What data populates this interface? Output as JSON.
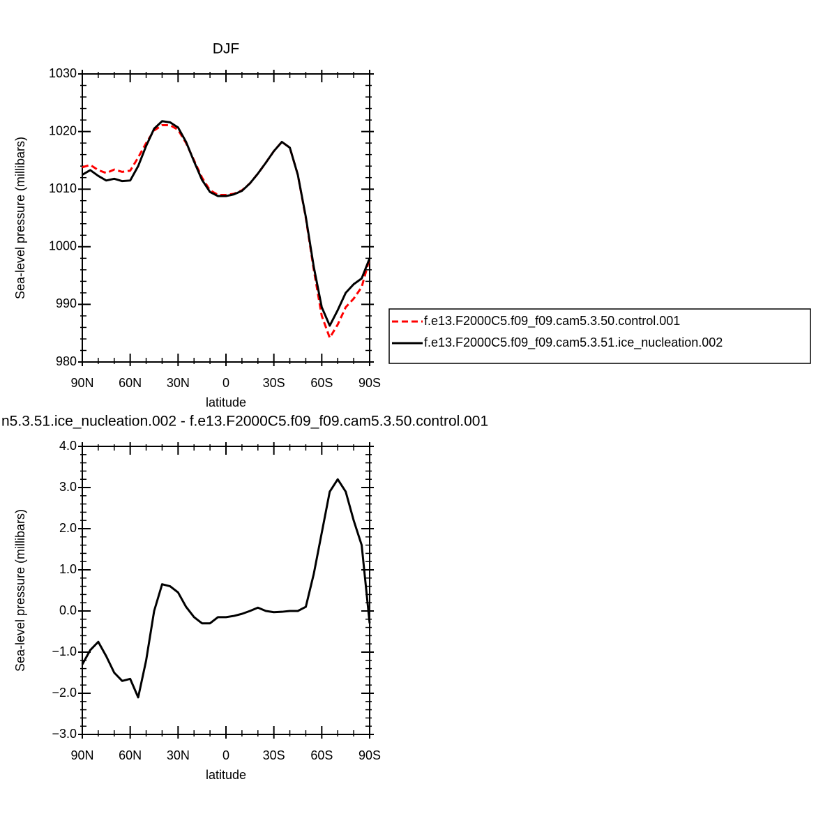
{
  "chart_data": [
    {
      "type": "line",
      "title": "DJF",
      "xlabel": "latitude",
      "ylabel": "Sea-level pressure (millibars)",
      "x": [
        90,
        85,
        80,
        75,
        70,
        65,
        60,
        55,
        50,
        45,
        40,
        35,
        30,
        25,
        20,
        15,
        10,
        5,
        0,
        -5,
        -10,
        -15,
        -20,
        -25,
        -30,
        -35,
        -40,
        -45,
        -50,
        -55,
        -60,
        -65,
        -70,
        -75,
        -80,
        -85,
        -90
      ],
      "series": [
        {
          "name": "f.e13.F2000C5.f09_f09.cam5.3.50.control.001",
          "color": "#ff0000",
          "dash": true,
          "values": [
            1013.8,
            1014.2,
            1013.3,
            1012.8,
            1013.4,
            1013.0,
            1013.2,
            1015.5,
            1018.0,
            1020.2,
            1021.1,
            1021.1,
            1020.3,
            1018.0,
            1015.0,
            1012.0,
            1009.8,
            1009.0,
            1009.0,
            1009.2,
            1009.8,
            1011.0,
            1012.7,
            1014.6,
            1016.6,
            1018.2,
            1017.2,
            1012.5,
            1005.0,
            996.0,
            988.0,
            984.2,
            986.5,
            989.5,
            991.0,
            993.0,
            998.0
          ]
        },
        {
          "name": "f.e13.F2000C5.f09_f09.cam5.3.51.ice_nucleation.002",
          "color": "#000000",
          "dash": false,
          "values": [
            1012.5,
            1013.3,
            1012.3,
            1011.5,
            1011.8,
            1011.4,
            1011.5,
            1014.0,
            1017.5,
            1020.5,
            1021.8,
            1021.6,
            1020.7,
            1018.2,
            1014.8,
            1011.6,
            1009.5,
            1008.8,
            1008.8,
            1009.1,
            1009.7,
            1011.0,
            1012.7,
            1014.6,
            1016.6,
            1018.2,
            1017.2,
            1012.5,
            1005.2,
            996.5,
            989.5,
            986.3,
            989.0,
            992.0,
            993.5,
            994.5,
            998.0
          ]
        }
      ],
      "xlim": [
        90,
        -90
      ],
      "xticks": [
        {
          "value": 90,
          "label": "90N"
        },
        {
          "value": 60,
          "label": "60N"
        },
        {
          "value": 30,
          "label": "30N"
        },
        0,
        {
          "value": -30,
          "label": "30S"
        },
        {
          "value": -60,
          "label": "60S"
        },
        {
          "value": -90,
          "label": "90S"
        }
      ],
      "ylim": [
        980,
        1030
      ],
      "yticks": [
        980,
        990,
        1000,
        1010,
        1020,
        1030
      ],
      "legend": "outside-right"
    },
    {
      "type": "line",
      "title": "n5.3.51.ice_nucleation.002 - f.e13.F2000C5.f09_f09.cam5.3.50.control.001",
      "xlabel": "latitude",
      "ylabel": "Sea-level pressure (millibars)",
      "x": [
        90,
        85,
        80,
        75,
        70,
        65,
        60,
        55,
        50,
        45,
        40,
        35,
        30,
        25,
        20,
        15,
        10,
        5,
        0,
        -5,
        -10,
        -15,
        -20,
        -25,
        -30,
        -35,
        -40,
        -45,
        -50,
        -55,
        -60,
        -65,
        -70,
        -75,
        -80,
        -85,
        -90
      ],
      "series": [
        {
          "color": "#000000",
          "dash": false,
          "values": [
            -1.3,
            -0.95,
            -0.75,
            -1.1,
            -1.5,
            -1.7,
            -1.65,
            -2.1,
            -1.2,
            0.0,
            0.65,
            0.6,
            0.45,
            0.1,
            -0.15,
            -0.3,
            -0.3,
            -0.15,
            -0.15,
            -0.12,
            -0.07,
            0.0,
            0.08,
            0.0,
            -0.03,
            -0.02,
            0.0,
            0.0,
            0.1,
            0.9,
            1.9,
            2.9,
            3.2,
            2.9,
            2.2,
            1.6,
            -0.3
          ]
        }
      ],
      "xlim": [
        90,
        -90
      ],
      "xticks": [
        {
          "value": 90,
          "label": "90N"
        },
        {
          "value": 60,
          "label": "60N"
        },
        {
          "value": 30,
          "label": "30N"
        },
        0,
        {
          "value": -30,
          "label": "30S"
        },
        {
          "value": -60,
          "label": "60S"
        },
        {
          "value": -90,
          "label": "90S"
        }
      ],
      "ylim": [
        -3,
        4
      ],
      "yticks": [
        {
          "value": -3,
          "label": "−3.0"
        },
        {
          "value": -2,
          "label": "−2.0"
        },
        {
          "value": -1,
          "label": "−1.0"
        },
        {
          "value": 0,
          "label": "0.0"
        },
        {
          "value": 1,
          "label": "1.0"
        },
        {
          "value": 2,
          "label": "2.0"
        },
        {
          "value": 3,
          "label": "3.0"
        },
        {
          "value": 4,
          "label": "4.0"
        }
      ]
    }
  ]
}
